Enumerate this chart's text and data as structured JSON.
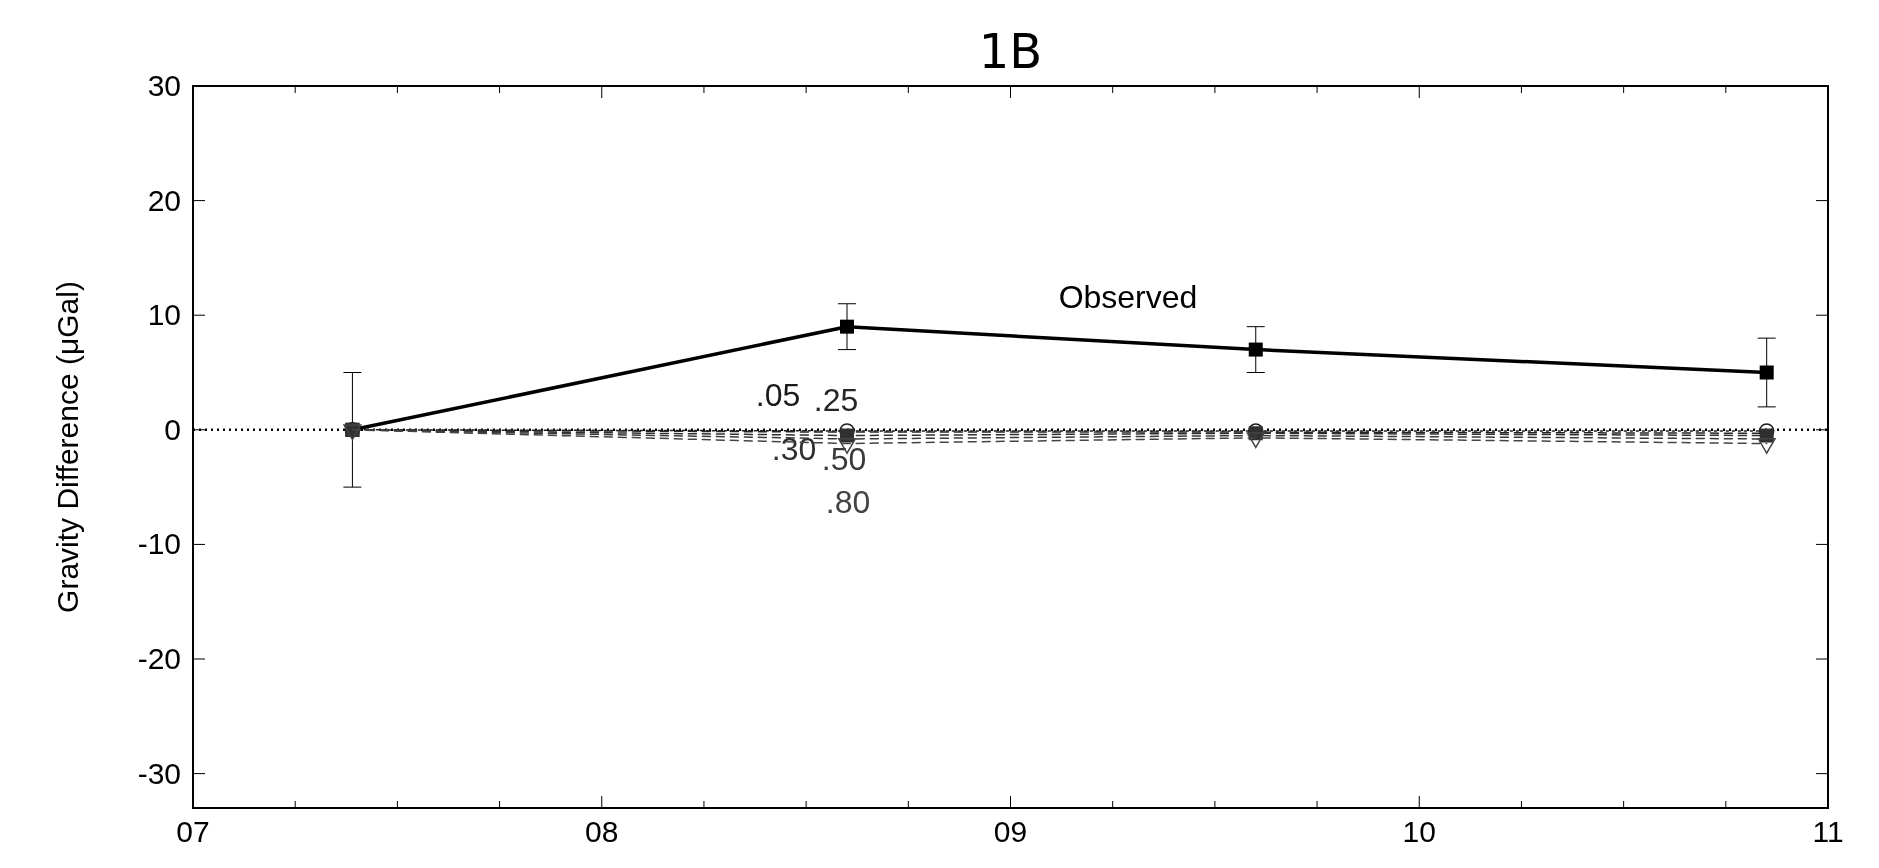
{
  "chart_data": {
    "type": "line",
    "title": "1B",
    "ylabel": "Gravity Difference (μGal)",
    "x": [
      7.39,
      8.6,
      9.6,
      10.85
    ],
    "series": [
      {
        "name": "Observed",
        "color": "#000000",
        "values": [
          0,
          9,
          7,
          5
        ],
        "errors": [
          5,
          2,
          2,
          3
        ],
        "marker": "square",
        "line_style": "solid"
      },
      {
        "name": ".05",
        "color": "#1a1a1a",
        "values": [
          0,
          -0.1,
          -0.1,
          -0.1
        ],
        "marker": "circle",
        "line_style": "dotted"
      },
      {
        "name": ".25",
        "color": "#262626",
        "values": [
          0,
          -0.2,
          -0.2,
          -0.3
        ],
        "marker": "none",
        "line_style": "dashed"
      },
      {
        "name": ".30",
        "color": "#303030",
        "values": [
          0,
          -0.5,
          -0.3,
          -0.5
        ],
        "marker": "square",
        "line_style": "dashed"
      },
      {
        "name": ".50",
        "color": "#3a3a3a",
        "values": [
          0,
          -0.8,
          -0.5,
          -0.8
        ],
        "marker": "none",
        "line_style": "dashed"
      },
      {
        "name": ".80",
        "color": "#444444",
        "values": [
          0,
          -1.2,
          -0.7,
          -1.2
        ],
        "marker": "triangle",
        "line_style": "dashed"
      }
    ],
    "xlim": [
      7,
      11
    ],
    "xticks": [
      {
        "value": 7,
        "label": "07"
      },
      {
        "value": 7.25,
        "label": null
      },
      {
        "value": 7.5,
        "label": null
      },
      {
        "value": 7.75,
        "label": null
      },
      {
        "value": 8,
        "label": "08"
      },
      {
        "value": 8.25,
        "label": null
      },
      {
        "value": 8.5,
        "label": null
      },
      {
        "value": 8.75,
        "label": null
      },
      {
        "value": 9,
        "label": "09"
      },
      {
        "value": 9.25,
        "label": null
      },
      {
        "value": 9.5,
        "label": null
      },
      {
        "value": 9.75,
        "label": null
      },
      {
        "value": 10,
        "label": "10"
      },
      {
        "value": 10.25,
        "label": null
      },
      {
        "value": 10.5,
        "label": null
      },
      {
        "value": 10.75,
        "label": null
      },
      {
        "value": 11,
        "label": "11"
      }
    ],
    "ylim": [
      -33,
      30
    ],
    "yticks": [
      -30,
      -20,
      -10,
      0,
      10,
      20,
      30
    ],
    "ref_lines": [
      {
        "axis": "y",
        "value": 0,
        "label": null,
        "line_style": "dotted",
        "color": "#000000"
      }
    ],
    "legend": false,
    "grid": false
  }
}
